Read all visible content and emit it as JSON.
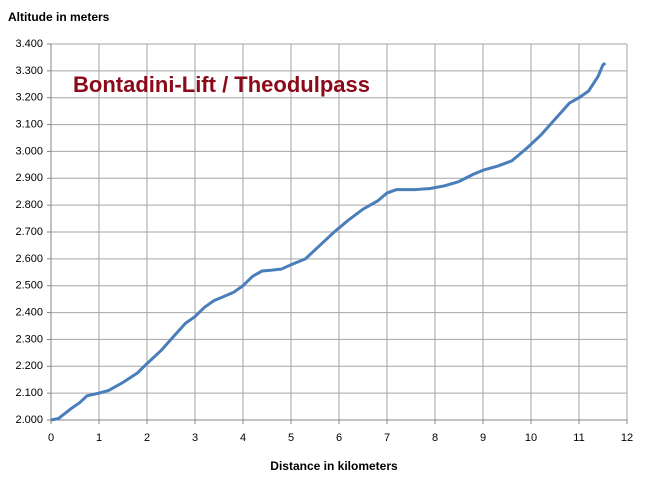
{
  "chart_data": {
    "type": "line",
    "title": "Bontadini-Lift / Theodulpass",
    "y_label": "Altitude in meters",
    "x_label": "Distance in kilometers",
    "x": [
      0,
      0.15,
      0.4,
      0.6,
      0.75,
      1.0,
      1.2,
      1.5,
      1.8,
      2.0,
      2.3,
      2.6,
      2.8,
      3.0,
      3.2,
      3.4,
      3.6,
      3.8,
      4.0,
      4.2,
      4.4,
      4.6,
      4.8,
      5.0,
      5.3,
      5.6,
      5.9,
      6.2,
      6.5,
      6.8,
      7.0,
      7.2,
      7.6,
      7.9,
      8.2,
      8.5,
      8.8,
      9.0,
      9.3,
      9.6,
      9.9,
      10.2,
      10.5,
      10.8,
      11.0,
      11.2,
      11.4,
      11.5,
      11.55
    ],
    "series": [
      {
        "color": "#4a7ebb",
        "values": [
          2000,
          2005,
          2040,
          2065,
          2090,
          2100,
          2110,
          2140,
          2175,
          2210,
          2260,
          2320,
          2360,
          2385,
          2420,
          2445,
          2460,
          2475,
          2500,
          2535,
          2555,
          2558,
          2562,
          2578,
          2600,
          2650,
          2700,
          2745,
          2785,
          2815,
          2845,
          2858,
          2858,
          2862,
          2872,
          2888,
          2915,
          2930,
          2945,
          2965,
          3010,
          3060,
          3120,
          3180,
          3200,
          3225,
          3280,
          3323,
          3328
        ]
      }
    ],
    "xlim": [
      0,
      12
    ],
    "xticks": [
      0,
      1,
      2,
      3,
      4,
      5,
      6,
      7,
      8,
      9,
      10,
      11,
      12
    ],
    "ylim": [
      2000,
      3400
    ],
    "yticks": [
      {
        "value": 2000,
        "label": "2.000"
      },
      {
        "value": 2100,
        "label": "2.100"
      },
      {
        "value": 2200,
        "label": "2.200"
      },
      {
        "value": 2300,
        "label": "2.300"
      },
      {
        "value": 2400,
        "label": "2.400"
      },
      {
        "value": 2500,
        "label": "2.500"
      },
      {
        "value": 2600,
        "label": "2.600"
      },
      {
        "value": 2700,
        "label": "2.700"
      },
      {
        "value": 2800,
        "label": "2.800"
      },
      {
        "value": 2900,
        "label": "2.900"
      },
      {
        "value": 3000,
        "label": "3.000"
      },
      {
        "value": 3100,
        "label": "3.100"
      },
      {
        "value": 3200,
        "label": "3.200"
      },
      {
        "value": 3300,
        "label": "3.300"
      },
      {
        "value": 3400,
        "label": "3.400"
      }
    ],
    "grid": true
  }
}
